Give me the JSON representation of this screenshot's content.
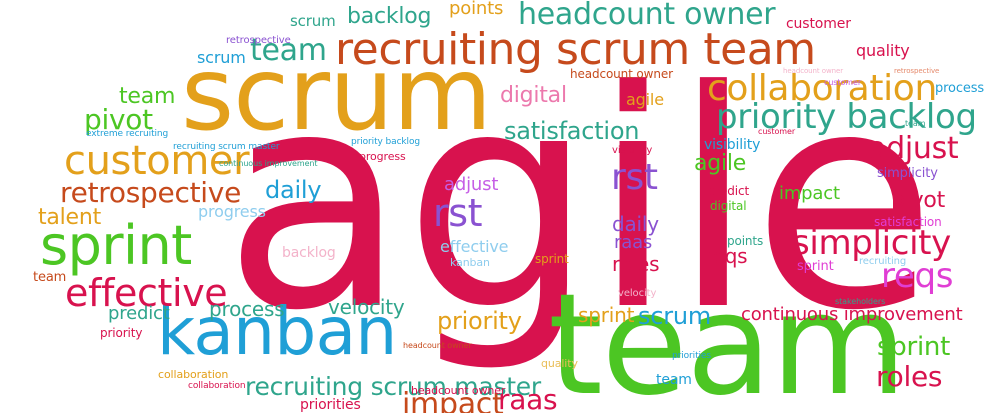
{
  "colors": {
    "crimson": "#d8124e",
    "green": "#4cc623",
    "orange": "#e3a01b",
    "blue": "#1f9fd6",
    "purple": "#8a52d1",
    "teal": "#2fa58c",
    "magenta": "#d11a8a",
    "rust": "#c64a1c",
    "pink": "#ec79ad",
    "lightpink": "#f3b3ca",
    "lightblue": "#8fcdee",
    "violet": "#c65ee6",
    "salmon": "#e58a6c",
    "fuchsia": "#e03ed4",
    "goldlight": "#e9bd56"
  },
  "words": [
    {
      "text": "agile",
      "color": "crimson",
      "icon": ""
    },
    {
      "text": "team",
      "color": "green"
    },
    {
      "text": "scrum",
      "color": "orange"
    },
    {
      "text": "recruiting scrum team",
      "color": "rust"
    },
    {
      "text": "kanban",
      "color": "blue"
    },
    {
      "text": "sprint",
      "color": "green"
    },
    {
      "text": "customer",
      "color": "orange"
    },
    {
      "text": "collaboration",
      "color": "orange"
    },
    {
      "text": "priority backlog",
      "color": "teal"
    },
    {
      "text": "effective",
      "color": "crimson"
    },
    {
      "text": "retrospective",
      "color": "rust"
    },
    {
      "text": "recruiting scrum master",
      "color": "teal"
    },
    {
      "text": "headcount owner",
      "color": "teal"
    },
    {
      "text": "rst",
      "color": "purple"
    },
    {
      "text": "rst",
      "color": "purple"
    },
    {
      "text": "simplicity",
      "color": "crimson"
    },
    {
      "text": "reqs",
      "color": "fuchsia"
    },
    {
      "text": "satisfaction",
      "color": "teal"
    },
    {
      "text": "pivot",
      "color": "green"
    },
    {
      "text": "adjust",
      "color": "crimson"
    },
    {
      "text": "scrum",
      "color": "blue"
    },
    {
      "text": "sprint",
      "color": "green"
    },
    {
      "text": "roles",
      "color": "crimson"
    },
    {
      "text": "team",
      "color": "teal"
    },
    {
      "text": "scrum",
      "color": "teal"
    },
    {
      "text": "backlog",
      "color": "teal"
    },
    {
      "text": "points",
      "color": "orange"
    },
    {
      "text": "scrum",
      "color": "blue"
    },
    {
      "text": "team",
      "color": "green"
    },
    {
      "text": "digital",
      "color": "pink"
    },
    {
      "text": "agile",
      "color": "orange"
    },
    {
      "text": "agile",
      "color": "green"
    },
    {
      "text": "daily",
      "color": "blue"
    },
    {
      "text": "talent",
      "color": "orange"
    },
    {
      "text": "progress",
      "color": "lightblue"
    },
    {
      "text": "process",
      "color": "teal"
    },
    {
      "text": "velocity",
      "color": "teal"
    },
    {
      "text": "priority",
      "color": "orange"
    },
    {
      "text": "predict",
      "color": "teal"
    },
    {
      "text": "impact",
      "color": "rust"
    },
    {
      "text": "raas",
      "color": "crimson"
    },
    {
      "text": "continuous improvement",
      "color": "crimson"
    },
    {
      "text": "sprint",
      "color": "orange"
    },
    {
      "text": "impact",
      "color": "green"
    },
    {
      "text": "pivot",
      "color": "crimson"
    },
    {
      "text": "adjust",
      "color": "violet"
    },
    {
      "text": "effective",
      "color": "lightblue"
    },
    {
      "text": "kanban",
      "color": "lightblue"
    },
    {
      "text": "daily",
      "color": "purple"
    },
    {
      "text": "raas",
      "color": "purple"
    },
    {
      "text": "roles",
      "color": "crimson"
    },
    {
      "text": "reqs",
      "color": "crimson"
    },
    {
      "text": "points",
      "color": "teal"
    },
    {
      "text": "backlog",
      "color": "lightpink"
    },
    {
      "text": "sprint",
      "color": "orange"
    },
    {
      "text": "quality",
      "color": "crimson"
    },
    {
      "text": "customer",
      "color": "crimson"
    },
    {
      "text": "process",
      "color": "blue"
    },
    {
      "text": "visibility",
      "color": "blue"
    },
    {
      "text": "simplicity",
      "color": "purple"
    },
    {
      "text": "satisfaction",
      "color": "fuchsia"
    },
    {
      "text": "recruiting",
      "color": "lightblue"
    },
    {
      "text": "sprint",
      "color": "fuchsia"
    },
    {
      "text": "predict",
      "color": "crimson"
    },
    {
      "text": "digital",
      "color": "green"
    },
    {
      "text": "team",
      "color": "rust"
    },
    {
      "text": "priority",
      "color": "crimson"
    },
    {
      "text": "collaboration",
      "color": "orange"
    },
    {
      "text": "collaboration",
      "color": "crimson"
    },
    {
      "text": "headcount owner",
      "color": "rust"
    },
    {
      "text": "headcount owner",
      "color": "crimson"
    },
    {
      "text": "retrospective",
      "color": "purple"
    },
    {
      "text": "extreme recruiting",
      "color": "blue"
    },
    {
      "text": "recruiting scrum master",
      "color": "blue"
    },
    {
      "text": "priority backlog",
      "color": "blue"
    },
    {
      "text": "progress",
      "color": "crimson"
    },
    {
      "text": "continuous improvement",
      "color": "teal"
    },
    {
      "text": "visibility",
      "color": "crimson"
    },
    {
      "text": "quality",
      "color": "goldlight"
    },
    {
      "text": "priorities",
      "color": "blue"
    },
    {
      "text": "team",
      "color": "blue"
    },
    {
      "text": "priorities",
      "color": "crimson"
    },
    {
      "text": "headcount owner",
      "color": "rust"
    },
    {
      "text": "customer",
      "color": "crimson"
    },
    {
      "text": "stakeholders",
      "color": "teal"
    },
    {
      "text": "velocity",
      "color": "lightpink"
    },
    {
      "text": "headcount owner",
      "color": "lightpink"
    },
    {
      "text": "retrospective",
      "color": "salmon"
    },
    {
      "text": "customer",
      "color": "violet"
    },
    {
      "text": "team",
      "color": "teal"
    }
  ]
}
